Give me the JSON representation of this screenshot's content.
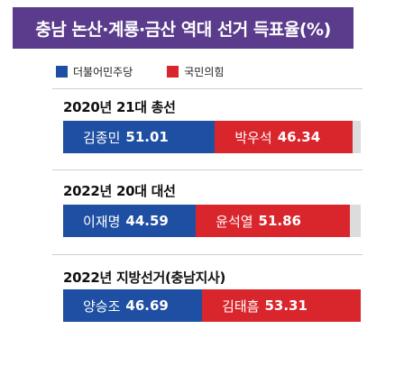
{
  "title": "충남 논산·계룡·금산 역대 선거 득표율(%)",
  "legend": [
    {
      "label": "더불어민주당",
      "color": "#1e4fa2"
    },
    {
      "label": "국민의힘",
      "color": "#d9252c"
    }
  ],
  "chart_data": {
    "type": "bar",
    "orientation": "horizontal-stacked",
    "title": "충남 논산·계룡·금산 역대 선거 득표율(%)",
    "series_names": [
      "더불어민주당",
      "국민의힘"
    ],
    "elections": [
      {
        "name": "2020년 21대 총선",
        "candidates": [
          {
            "name": "김종민",
            "value": 51.01,
            "party": "더불어민주당"
          },
          {
            "name": "박우석",
            "value": 46.34,
            "party": "국민의힘"
          }
        ]
      },
      {
        "name": "2022년 20대 대선",
        "candidates": [
          {
            "name": "이재명",
            "value": 44.59,
            "party": "더불어민주당"
          },
          {
            "name": "윤석열",
            "value": 51.86,
            "party": "국민의힘"
          }
        ]
      },
      {
        "name": "2022년 지방선거(충남지사)",
        "candidates": [
          {
            "name": "양승조",
            "value": 46.69,
            "party": "더불어민주당"
          },
          {
            "name": "김태흠",
            "value": 53.31,
            "party": "국민의힘"
          }
        ]
      }
    ],
    "xlim": [
      0,
      100
    ]
  }
}
